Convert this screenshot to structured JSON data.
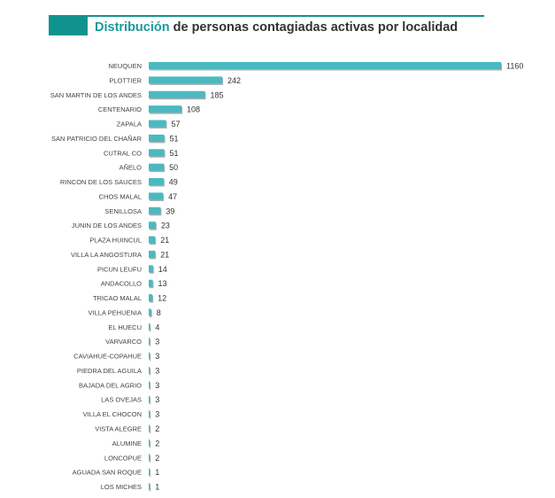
{
  "title": {
    "highlight": "Distribución",
    "rest": " de personas contagiadas activas por localidad"
  },
  "colors": {
    "bar": "#4bb9c0",
    "shadow": "#6b7a7c",
    "accent": "#10938d"
  },
  "chart_data": {
    "type": "bar",
    "orientation": "horizontal",
    "title": "Distribución de personas contagiadas activas por localidad",
    "categories": [
      "NEUQUEN",
      "PLOTTIER",
      "SAN MARTIN DE LOS ANDES",
      "CENTENARIO",
      "ZAPALA",
      "SAN PATRICIO DEL CHAÑAR",
      "CUTRAL CO",
      "AÑELO",
      "RINCON DE LOS SAUCES",
      "CHOS MALAL",
      "SENILLOSA",
      "JUNIN DE LOS ANDES",
      "PLAZA HUINCUL",
      "VILLA LA ANGOSTURA",
      "PICUN LEUFU",
      "ANDACOLLO",
      "TRICAO MALAL",
      "VILLA PEHUENIA",
      "EL HUECU",
      "VARVARCO",
      "CAVIAHUE-COPAHUE",
      "PIEDRA DEL AGUILA",
      "BAJADA DEL AGRIO",
      "LAS OVEJAS",
      "VILLA EL CHOCON",
      "VISTA ALEGRE",
      "ALUMINE",
      "LONCOPUE",
      "AGUADA SAN ROQUE",
      "LOS MICHES"
    ],
    "values": [
      1160,
      242,
      185,
      108,
      57,
      51,
      51,
      50,
      49,
      47,
      39,
      23,
      21,
      21,
      14,
      13,
      12,
      8,
      4,
      3,
      3,
      3,
      3,
      3,
      3,
      2,
      2,
      2,
      1,
      1
    ],
    "xlabel": "",
    "ylabel": "",
    "xlim": [
      0,
      1160
    ],
    "grid": false,
    "legend": "none"
  }
}
